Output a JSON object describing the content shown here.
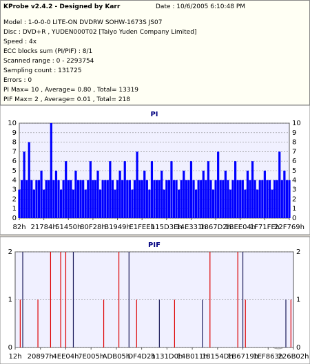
{
  "header": {
    "title": "KProbe v2.4.2 - Designed by Karr",
    "date": "Date : 10/6/2005 6:10:48 PM",
    "lines": [
      "Model : 1-0-0-0 LITE-ON DVDRW SOHW-1673S JS07",
      "Disc : DVD+R , YUDEN000T02 [Taiyo Yuden Company Limited]",
      "Speed : 4x",
      "ECC blocks sum (PI/PIF) : 8/1",
      "Scanned range : 0 - 2293754",
      "Sampling count : 131725",
      "Errors : 0",
      "PI Max= 10 , Average= 0.80 , Total= 13319",
      "PIF Max= 2 , Average= 0.01 , Total= 218"
    ]
  },
  "chart_data": [
    {
      "type": "bar",
      "title": "PI",
      "color": "#0000ff",
      "grid": true,
      "values": [
        3,
        4,
        7,
        4,
        8,
        4,
        3,
        4,
        4,
        5,
        3,
        4,
        4,
        10,
        4,
        5,
        4,
        3,
        4,
        6,
        4,
        4,
        3,
        5,
        4,
        4,
        4,
        3,
        4,
        6,
        4,
        4,
        5,
        3,
        4,
        4,
        4,
        6,
        4,
        3,
        4,
        5,
        4,
        6,
        4,
        4,
        3,
        4,
        7,
        4,
        4,
        5,
        4,
        3,
        6,
        4,
        4,
        4,
        5,
        3,
        4,
        4,
        6,
        4,
        4,
        3,
        4,
        5,
        4,
        4,
        6,
        4,
        3,
        4,
        4,
        5,
        4,
        6,
        4,
        3,
        4,
        7,
        4,
        4,
        5,
        4,
        3,
        4,
        6,
        4,
        4,
        4,
        3,
        5,
        4,
        6,
        4,
        3,
        4,
        4,
        5,
        4,
        4,
        3,
        4,
        4,
        7,
        4,
        5,
        4,
        4
      ],
      "xlim": [
        0,
        110
      ],
      "xticks": [
        {
          "value": 0,
          "label": "82h"
        },
        {
          "value": 10,
          "label": "21784h"
        },
        {
          "value": 20,
          "label": "51450h"
        },
        {
          "value": 30,
          "label": "80F28h"
        },
        {
          "value": 40,
          "label": "B1949h"
        },
        {
          "value": 50,
          "label": "E1FEEh"
        },
        {
          "value": 60,
          "label": "115D3Eh"
        },
        {
          "value": 70,
          "label": "14E331h"
        },
        {
          "value": 80,
          "label": "1867D2h"
        },
        {
          "value": 90,
          "label": "1BEE04h"
        },
        {
          "value": 100,
          "label": "1F71FEh"
        },
        {
          "value": 110,
          "label": "22F769h"
        }
      ],
      "ylim": [
        0,
        10
      ],
      "yticks": [
        0,
        1,
        2,
        3,
        4,
        5,
        6,
        7,
        8,
        9,
        10
      ]
    },
    {
      "type": "bar",
      "title": "PIF",
      "grid": true,
      "series": [
        {
          "color": "#dd0000",
          "values": [
            0,
            0,
            1,
            0,
            0,
            0,
            0,
            0,
            0,
            1,
            0,
            0,
            0,
            0,
            2,
            0,
            0,
            0,
            2,
            0,
            2,
            0,
            0,
            0,
            0,
            0,
            0,
            0,
            0,
            0,
            0,
            0,
            0,
            0,
            0,
            1,
            0,
            0,
            0,
            0,
            0,
            2,
            0,
            0,
            0,
            0,
            0,
            0,
            1,
            0,
            0,
            0,
            0,
            0,
            0,
            0,
            0,
            0,
            0,
            0,
            0,
            0,
            0,
            1,
            0,
            0,
            0,
            0,
            0,
            0,
            0,
            0,
            0,
            0,
            0,
            0,
            0,
            2,
            0,
            0,
            0,
            0,
            0,
            0,
            0,
            0,
            0,
            0,
            2,
            0,
            0,
            1,
            0,
            0,
            0,
            0,
            0,
            0,
            0,
            0,
            0,
            0,
            0,
            0,
            0,
            0,
            0,
            0,
            0,
            1,
            0
          ]
        },
        {
          "color": "#1a1a5a",
          "values": [
            0,
            0,
            0,
            2,
            0,
            0,
            0,
            0,
            0,
            0,
            0,
            0,
            0,
            0,
            0,
            0,
            0,
            0,
            0,
            0,
            0,
            0,
            0,
            2,
            0,
            0,
            0,
            0,
            0,
            0,
            0,
            0,
            0,
            0,
            0,
            0,
            0,
            0,
            0,
            0,
            0,
            0,
            0,
            0,
            0,
            2,
            0,
            0,
            0,
            0,
            0,
            0,
            0,
            0,
            0,
            0,
            0,
            1,
            0,
            0,
            0,
            0,
            0,
            0,
            0,
            0,
            0,
            0,
            0,
            0,
            0,
            0,
            0,
            0,
            1,
            0,
            0,
            0,
            0,
            0,
            0,
            0,
            0,
            0,
            0,
            0,
            0,
            0,
            0,
            0,
            2,
            0,
            0,
            0,
            0,
            0,
            0,
            0,
            0,
            0,
            0,
            0,
            0,
            0,
            0,
            0,
            0,
            1,
            0,
            0,
            0
          ]
        }
      ],
      "xlim": [
        0,
        110
      ],
      "xticks": [
        {
          "value": 0,
          "label": "12h"
        },
        {
          "value": 10,
          "label": "20897h"
        },
        {
          "value": 20,
          "label": "4EE04h"
        },
        {
          "value": 30,
          "label": "7E005h"
        },
        {
          "value": 40,
          "label": "ADB05h"
        },
        {
          "value": 50,
          "label": "DF4D2h"
        },
        {
          "value": 60,
          "label": "1131D0h"
        },
        {
          "value": 70,
          "label": "14B011h"
        },
        {
          "value": 80,
          "label": "18154Dh"
        },
        {
          "value": 90,
          "label": "1B6719h"
        },
        {
          "value": 100,
          "label": "1EF863h"
        },
        {
          "value": 110,
          "label": "226B02h"
        }
      ],
      "ylim": [
        0,
        2
      ],
      "yticks": [
        0,
        1,
        2
      ]
    }
  ]
}
